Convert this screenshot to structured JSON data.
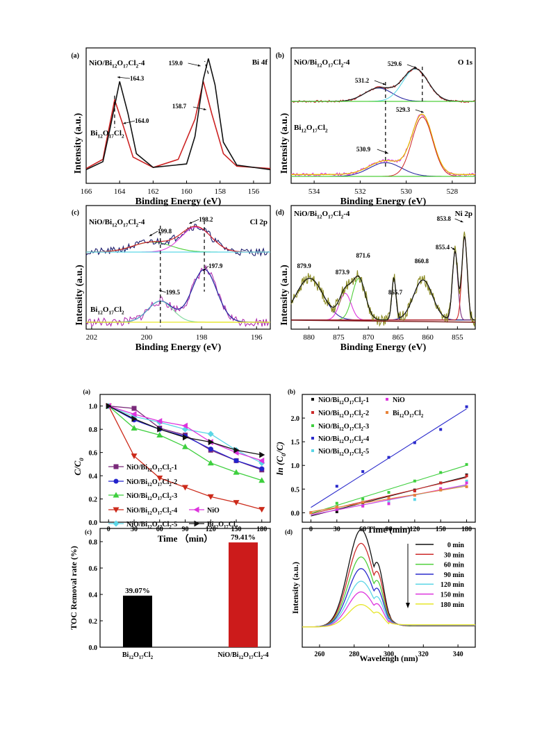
{
  "chart_data": [
    {
      "panel": "(a)",
      "type": "line",
      "sample_top": "NiO/Bi12O17Cl2-4",
      "sample_bottom": "Bi12O17Cl2",
      "region": "Bi 4f",
      "xlabel": "Binding Energy (eV)",
      "ylabel": "Intensity (a.u.)",
      "xlim": [
        166,
        155
      ],
      "xticks": [
        "166",
        "164",
        "162",
        "160",
        "158",
        "156"
      ],
      "peaks_top": [
        {
          "x": 164.3,
          "label": "164.3"
        },
        {
          "x": 159.0,
          "label": "159.0"
        }
      ],
      "peaks_bottom": [
        {
          "x": 164.0,
          "label": "164.0"
        },
        {
          "x": 158.7,
          "label": "158.7"
        }
      ],
      "series": [
        {
          "name": "NiO/Bi12O17Cl2-4",
          "color": "#cc2222",
          "x": [
            166,
            165,
            164.8,
            164.3,
            163.8,
            163.2,
            162,
            160.5,
            159.5,
            159.0,
            158.5,
            157.8,
            157,
            155
          ],
          "y": [
            0.02,
            0.1,
            0.25,
            0.62,
            0.4,
            0.12,
            0.03,
            0.1,
            0.45,
            0.78,
            0.5,
            0.15,
            0.04,
            0.02
          ]
        },
        {
          "name": "Bi12O17Cl2",
          "color": "#111111",
          "x": [
            166,
            165,
            164.6,
            164.0,
            163.5,
            163,
            162,
            160,
            159.5,
            159.0,
            158.7,
            158.3,
            157.8,
            157,
            155
          ],
          "y": [
            0.01,
            0.08,
            0.35,
            0.78,
            0.5,
            0.15,
            0.03,
            0.06,
            0.3,
            0.8,
            0.98,
            0.75,
            0.25,
            0.05,
            0.01
          ]
        }
      ]
    },
    {
      "panel": "(b)",
      "type": "line",
      "sample_top": "NiO/Bi12O17Cl2-4",
      "sample_bottom": "Bi12O17Cl2",
      "region": "O 1s",
      "xlabel": "Binding Energy (eV)",
      "ylabel": "Intensity (a.u.)",
      "xlim": [
        535,
        527
      ],
      "xticks": [
        "534",
        "532",
        "530",
        "528"
      ],
      "peaks_top": [
        {
          "x": 531.2,
          "label": "531.2"
        },
        {
          "x": 529.6,
          "label": "529.6"
        }
      ],
      "peaks_bottom": [
        {
          "x": 530.9,
          "label": "530.9"
        },
        {
          "x": 529.3,
          "label": "529.3"
        }
      ]
    },
    {
      "panel": "(c)",
      "type": "line",
      "sample_top": "NiO/Bi12O17Cl2-4",
      "sample_bottom": "Bi12O17Cl2",
      "region": "Cl 2p",
      "xlabel": "Binding Energy (eV)",
      "ylabel": "Intensity (a.u.)",
      "xlim": [
        202.2,
        195.5
      ],
      "xticks": [
        "202",
        "200",
        "198",
        "196"
      ],
      "peaks_top": [
        {
          "x": 199.8,
          "label": "199.8"
        },
        {
          "x": 198.2,
          "label": "198.2"
        }
      ],
      "peaks_bottom": [
        {
          "x": 199.5,
          "label": "199.5"
        },
        {
          "x": 197.9,
          "label": "197.9"
        }
      ]
    },
    {
      "panel": "(d)",
      "type": "line",
      "sample": "NiO/Bi12O17Cl2-4",
      "region": "Ni 2p",
      "xlabel": "Binding Energy (eV)",
      "ylabel": "Intensity (a.u.)",
      "xlim": [
        883,
        852
      ],
      "xticks": [
        "880",
        "875",
        "870",
        "865",
        "860",
        "855"
      ],
      "peaks": [
        {
          "x": 879.9,
          "label": "879.9"
        },
        {
          "x": 873.9,
          "label": "873.9"
        },
        {
          "x": 871.6,
          "label": "871.6"
        },
        {
          "x": 865.7,
          "label": "865.7"
        },
        {
          "x": 860.8,
          "label": "860.8"
        },
        {
          "x": 855.4,
          "label": "855.4"
        },
        {
          "x": 853.8,
          "label": "853.8"
        }
      ]
    },
    {
      "panel": "(a)",
      "type": "line",
      "xlabel": "Time (min)",
      "ylabel": "C/C0",
      "xlim": [
        -10,
        190
      ],
      "ylim": [
        0,
        1.1
      ],
      "xticks": [
        0,
        30,
        60,
        90,
        120,
        150,
        180
      ],
      "yticks": [
        0.0,
        0.2,
        0.4,
        0.6,
        0.8,
        1.0
      ],
      "x": [
        0,
        30,
        60,
        90,
        120,
        150,
        180
      ],
      "series": [
        {
          "name": "NiO/Bi12O17Cl2-1",
          "color": "#7a2a7a",
          "marker": "square",
          "values": [
            1.0,
            0.98,
            0.81,
            0.75,
            0.62,
            0.53,
            0.45
          ]
        },
        {
          "name": "NiO/Bi12O17Cl2-2",
          "color": "#2222cc",
          "marker": "circle",
          "values": [
            1.0,
            0.88,
            0.8,
            0.74,
            0.63,
            0.53,
            0.46
          ]
        },
        {
          "name": "NiO/Bi12O17Cl2-3",
          "color": "#3ecf3e",
          "marker": "triangle-up",
          "values": [
            1.0,
            0.81,
            0.75,
            0.65,
            0.51,
            0.43,
            0.36
          ]
        },
        {
          "name": "NiO/Bi12O17Cl2-4",
          "color": "#cc2a1a",
          "marker": "triangle-down",
          "values": [
            1.0,
            0.57,
            0.38,
            0.3,
            0.22,
            0.17,
            0.11
          ]
        },
        {
          "name": "NiO/Bi12O17Cl2-5",
          "color": "#5bd6e6",
          "marker": "diamond",
          "values": [
            1.0,
            0.91,
            0.86,
            0.8,
            0.76,
            0.62,
            0.51
          ]
        },
        {
          "name": "NiO",
          "color": "#dd33dd",
          "marker": "triangle-left",
          "values": [
            1.0,
            0.93,
            0.87,
            0.83,
            0.69,
            0.6,
            0.53
          ]
        },
        {
          "name": "Bi12O17Cl2",
          "color": "#111111",
          "marker": "triangle-right",
          "values": [
            1.0,
            0.89,
            0.8,
            0.73,
            0.69,
            0.62,
            0.58
          ]
        }
      ]
    },
    {
      "panel": "(b)",
      "type": "scatter",
      "xlabel": "Time (min)",
      "ylabel": "ln (C0/C)",
      "xlim": [
        -10,
        190
      ],
      "ylim": [
        -0.2,
        2.5
      ],
      "xticks": [
        0,
        30,
        60,
        90,
        120,
        150,
        180
      ],
      "yticks": [
        0.0,
        0.5,
        1.0,
        1.5,
        2.0
      ],
      "x": [
        0,
        30,
        60,
        90,
        120,
        150,
        180
      ],
      "series": [
        {
          "name": "NiO/Bi12O17Cl2-1",
          "color": "#111111",
          "values": [
            0.0,
            0.02,
            0.21,
            0.29,
            0.48,
            0.63,
            0.8
          ]
        },
        {
          "name": "NiO/Bi12O17Cl2-2",
          "color": "#cc2a2a",
          "values": [
            0.0,
            0.13,
            0.22,
            0.3,
            0.46,
            0.63,
            0.78
          ]
        },
        {
          "name": "NiO/Bi12O17Cl2-3",
          "color": "#3ecf3e",
          "values": [
            0.0,
            0.2,
            0.29,
            0.43,
            0.67,
            0.85,
            1.02
          ]
        },
        {
          "name": "NiO/Bi12O17Cl2-4",
          "color": "#2a2acc",
          "values": [
            0.0,
            0.56,
            0.87,
            1.17,
            1.48,
            1.76,
            2.24
          ]
        },
        {
          "name": "NiO/Bi12O17Cl2-5",
          "color": "#5bd6e6",
          "values": [
            0.0,
            0.09,
            0.15,
            0.22,
            0.28,
            0.48,
            0.67
          ]
        },
        {
          "name": "NiO",
          "color": "#dd33dd",
          "values": [
            0.0,
            0.07,
            0.14,
            0.19,
            0.37,
            0.51,
            0.63
          ]
        },
        {
          "name": "Bi12O17Cl2",
          "color": "#e8833a",
          "values": [
            0.0,
            0.12,
            0.22,
            0.31,
            0.37,
            0.48,
            0.55
          ]
        }
      ]
    },
    {
      "panel": "(c)",
      "type": "bar",
      "ylabel": "TOC Removal rate (%)",
      "ylim": [
        0,
        0.9
      ],
      "yticks": [
        0.0,
        0.2,
        0.4,
        0.6,
        0.8
      ],
      "categories": [
        "Bi12O17Cl2",
        "NiO/Bi12O17Cl2-4"
      ],
      "values": [
        0.3907,
        0.7941
      ],
      "value_labels": [
        "39.07%",
        "79.41%"
      ],
      "colors": [
        "#000000",
        "#cc1b1b"
      ]
    },
    {
      "panel": "(d)",
      "type": "line",
      "xlabel": "Wavelengh (nm)",
      "ylabel": "Intensity (a.u.)",
      "xlim": [
        250,
        350
      ],
      "xticks": [
        260,
        280,
        300,
        320,
        340
      ],
      "series": [
        {
          "name": "0 min",
          "color": "#111111",
          "peak": 1.0
        },
        {
          "name": "30 min",
          "color": "#cc2a2a",
          "peak": 0.86
        },
        {
          "name": "60 min",
          "color": "#4fcf3a",
          "peak": 0.72
        },
        {
          "name": "90 min",
          "color": "#2a2acc",
          "peak": 0.6
        },
        {
          "name": "120 min",
          "color": "#5bd6e6",
          "peak": 0.47
        },
        {
          "name": "150 min",
          "color": "#dd33dd",
          "peak": 0.36
        },
        {
          "name": "180 min",
          "color": "#e6e62a",
          "peak": 0.23
        }
      ]
    }
  ]
}
